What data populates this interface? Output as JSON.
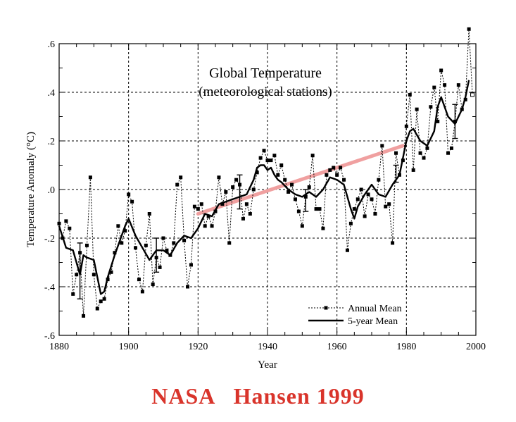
{
  "caption": "NASA   Hansen 1999",
  "chart_data": {
    "type": "line",
    "title": "Global Temperature",
    "subtitle": "(meteorological stations)",
    "xlabel": "Year",
    "ylabel": "Temperature Anomaly (°C)",
    "xlim": [
      1880,
      2000
    ],
    "ylim": [
      -0.6,
      0.6
    ],
    "x_ticks": [
      1880,
      1900,
      1920,
      1940,
      1960,
      1980,
      2000
    ],
    "x_tick_labels": [
      "1880",
      "1900",
      "1920",
      "1940",
      "1960",
      "1980",
      "2000"
    ],
    "y_ticks": [
      -0.6,
      -0.4,
      -0.2,
      0.0,
      0.2,
      0.4,
      0.6
    ],
    "y_tick_labels": [
      "-.6",
      "-.4",
      "-.2",
      ".0",
      ".2",
      ".4",
      ".6"
    ],
    "grid": true,
    "legend_position": "bottom-right",
    "series": [
      {
        "name": "Annual Mean",
        "style": "dotted-square-markers",
        "color": "#000000",
        "x": [
          1880,
          1881,
          1882,
          1883,
          1884,
          1885,
          1886,
          1887,
          1888,
          1889,
          1890,
          1891,
          1892,
          1893,
          1894,
          1895,
          1896,
          1897,
          1898,
          1899,
          1900,
          1901,
          1902,
          1903,
          1904,
          1905,
          1906,
          1907,
          1908,
          1909,
          1910,
          1911,
          1912,
          1913,
          1914,
          1915,
          1916,
          1917,
          1918,
          1919,
          1920,
          1921,
          1922,
          1923,
          1924,
          1925,
          1926,
          1927,
          1928,
          1929,
          1930,
          1931,
          1932,
          1933,
          1934,
          1935,
          1936,
          1937,
          1938,
          1939,
          1940,
          1941,
          1942,
          1943,
          1944,
          1945,
          1946,
          1947,
          1948,
          1949,
          1950,
          1951,
          1952,
          1953,
          1954,
          1955,
          1956,
          1957,
          1958,
          1959,
          1960,
          1961,
          1962,
          1963,
          1964,
          1965,
          1966,
          1967,
          1968,
          1969,
          1970,
          1971,
          1972,
          1973,
          1974,
          1975,
          1976,
          1977,
          1978,
          1979,
          1980,
          1981,
          1982,
          1983,
          1984,
          1985,
          1986,
          1987,
          1988,
          1989,
          1990,
          1991,
          1992,
          1993,
          1994,
          1995,
          1996,
          1997,
          1998,
          1999
        ],
        "y": [
          -0.14,
          -0.2,
          -0.13,
          -0.16,
          -0.43,
          -0.35,
          -0.26,
          -0.52,
          -0.23,
          0.05,
          -0.35,
          -0.49,
          -0.46,
          -0.45,
          -0.37,
          -0.34,
          -0.26,
          -0.15,
          -0.22,
          -0.17,
          -0.02,
          -0.05,
          -0.24,
          -0.37,
          -0.42,
          -0.23,
          -0.1,
          -0.39,
          -0.28,
          -0.32,
          -0.2,
          -0.25,
          -0.27,
          -0.22,
          0.02,
          0.05,
          -0.21,
          -0.4,
          -0.31,
          -0.07,
          -0.08,
          -0.06,
          -0.15,
          -0.11,
          -0.15,
          -0.09,
          0.05,
          -0.06,
          -0.01,
          -0.22,
          0.01,
          0.04,
          0.02,
          -0.12,
          -0.06,
          -0.1,
          0.0,
          0.07,
          0.13,
          0.16,
          0.12,
          0.12,
          0.14,
          0.06,
          0.1,
          0.04,
          -0.01,
          0.02,
          -0.04,
          -0.09,
          -0.15,
          -0.03,
          0.01,
          0.14,
          -0.08,
          -0.08,
          -0.16,
          0.06,
          0.08,
          0.09,
          0.06,
          0.09,
          0.04,
          -0.25,
          -0.14,
          -0.08,
          -0.04,
          0.0,
          -0.11,
          -0.02,
          -0.04,
          -0.1,
          0.04,
          0.18,
          -0.07,
          -0.06,
          -0.22,
          0.15,
          0.06,
          0.12,
          0.26,
          0.39,
          0.08,
          0.33,
          0.15,
          0.13,
          0.17,
          0.34,
          0.42,
          0.28,
          0.49,
          0.43,
          0.15,
          0.17,
          0.28,
          0.43,
          0.33,
          0.37,
          0.66,
          0.39
        ]
      },
      {
        "name": "5-year Mean",
        "style": "solid",
        "color": "#000000",
        "x": [
          1880,
          1882,
          1884,
          1886,
          1887,
          1888,
          1890,
          1892,
          1893,
          1894,
          1896,
          1898,
          1899,
          1900,
          1902,
          1904,
          1906,
          1908,
          1910,
          1912,
          1914,
          1916,
          1918,
          1920,
          1922,
          1924,
          1926,
          1928,
          1930,
          1932,
          1934,
          1936,
          1937,
          1938,
          1939,
          1940,
          1941,
          1942,
          1943,
          1944,
          1946,
          1948,
          1950,
          1952,
          1954,
          1956,
          1958,
          1960,
          1962,
          1964,
          1965,
          1966,
          1968,
          1970,
          1972,
          1974,
          1976,
          1978,
          1980,
          1981,
          1982,
          1984,
          1986,
          1988,
          1989,
          1990,
          1992,
          1994,
          1996,
          1997,
          1998
        ],
        "y": [
          -0.15,
          -0.24,
          -0.25,
          -0.35,
          -0.27,
          -0.28,
          -0.29,
          -0.43,
          -0.42,
          -0.36,
          -0.27,
          -0.19,
          -0.15,
          -0.12,
          -0.19,
          -0.24,
          -0.29,
          -0.25,
          -0.25,
          -0.27,
          -0.22,
          -0.19,
          -0.2,
          -0.16,
          -0.1,
          -0.11,
          -0.06,
          -0.05,
          -0.04,
          -0.03,
          -0.02,
          0.04,
          0.09,
          0.1,
          0.1,
          0.08,
          0.09,
          0.06,
          0.04,
          0.03,
          0.0,
          -0.02,
          -0.03,
          -0.01,
          -0.03,
          0.0,
          0.05,
          0.04,
          0.02,
          -0.08,
          -0.12,
          -0.07,
          -0.02,
          0.02,
          -0.02,
          -0.03,
          0.02,
          0.06,
          0.2,
          0.24,
          0.25,
          0.2,
          0.18,
          0.24,
          0.34,
          0.38,
          0.3,
          0.27,
          0.33,
          0.38,
          0.45
        ]
      }
    ],
    "error_bars": [
      {
        "x": 1886,
        "y": -0.34,
        "low": -0.45,
        "high": -0.22
      },
      {
        "x": 1908,
        "y": -0.28,
        "low": -0.34,
        "high": -0.2
      },
      {
        "x": 1932,
        "y": -0.02,
        "low": -0.08,
        "high": 0.06
      },
      {
        "x": 1951,
        "y": -0.05,
        "low": -0.09,
        "high": 0.0
      },
      {
        "x": 1977,
        "y": 0.07,
        "low": 0.03,
        "high": 0.1
      },
      {
        "x": 1994,
        "y": 0.27,
        "low": 0.21,
        "high": 0.35
      }
    ],
    "trend_overlay": {
      "color": "#f0a0a0",
      "x": [
        1920,
        1979
      ],
      "y": [
        -0.1,
        0.18
      ]
    }
  }
}
